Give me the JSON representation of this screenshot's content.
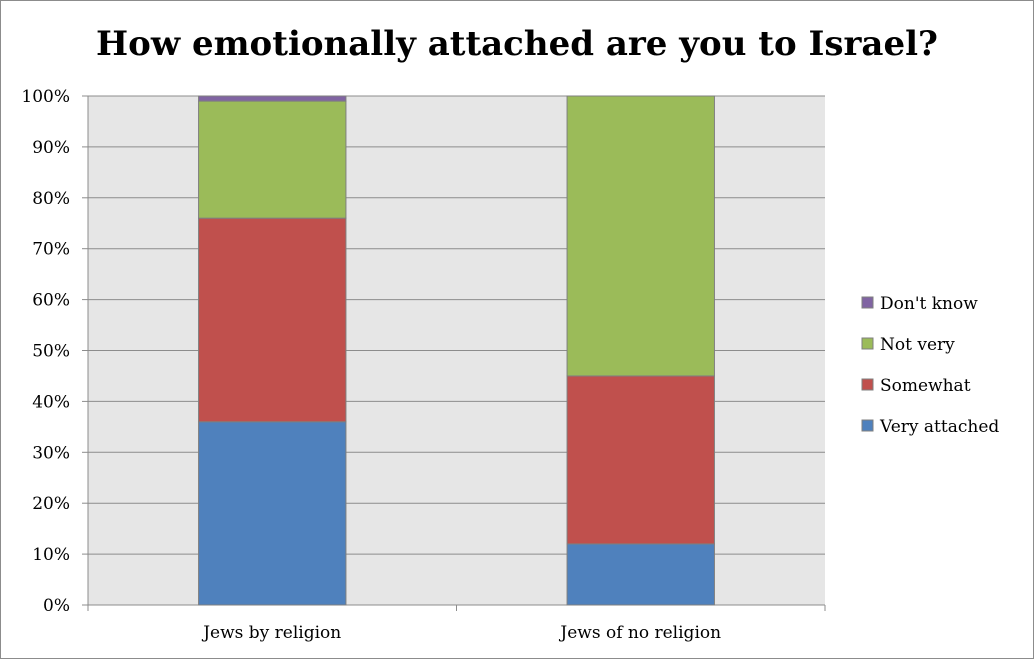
{
  "chart_data": {
    "type": "bar",
    "stacked": true,
    "title": "How emotionally attached are you to Israel?",
    "categories": [
      "Jews by religion",
      "Jews of no religion"
    ],
    "series": [
      {
        "name": "Very attached",
        "values": [
          36,
          12
        ],
        "color": "#4f81bd"
      },
      {
        "name": "Somewhat",
        "values": [
          40,
          33
        ],
        "color": "#c0504d"
      },
      {
        "name": "Not very",
        "values": [
          23,
          55
        ],
        "color": "#9bbb59"
      },
      {
        "name": "Don't know",
        "values": [
          1,
          0
        ],
        "color": "#8064a2"
      }
    ],
    "ylim": [
      0,
      100
    ],
    "yticks": [
      "0%",
      "10%",
      "20%",
      "30%",
      "40%",
      "50%",
      "60%",
      "70%",
      "80%",
      "90%",
      "100%"
    ],
    "grid": true,
    "legend": "right",
    "plot_background": "#e6e6e6"
  }
}
